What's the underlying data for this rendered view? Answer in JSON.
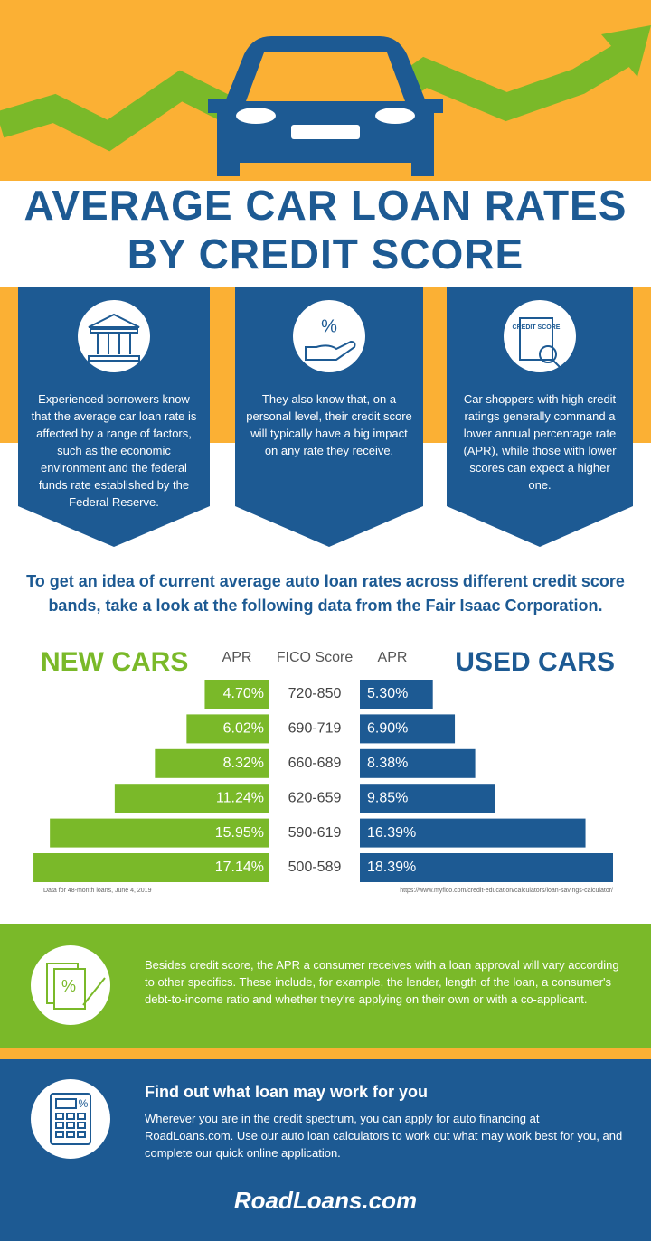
{
  "header": {
    "title_line1": "AVERAGE CAR LOAN RATES",
    "title_line2": "BY CREDIT SCORE"
  },
  "panels": [
    {
      "text": "Experienced borrowers know that the average car loan rate is affected by a range of factors, such as the economic environment and the federal funds rate established by the Federal Reserve."
    },
    {
      "text": "They also know that, on a personal level, their credit score will typically have a big impact on any rate they receive."
    },
    {
      "text": "Car shoppers with high credit ratings generally command a lower annual percentage rate (APR), while those with lower scores can expect a higher one."
    }
  ],
  "icon_labels": {
    "percent": "%",
    "credit_score": "CREDIT SCORE"
  },
  "intro": "To get an idea of current average auto loan rates across different credit score bands, take a look at the following data from the Fair Isaac Corporation.",
  "chart_data": {
    "type": "butterfly",
    "column_headers": [
      "APR",
      "FICO Score",
      "APR"
    ],
    "categories": [
      "720-850",
      "690-719",
      "660-689",
      "620-659",
      "590-619",
      "500-589"
    ],
    "series": [
      {
        "name": "NEW CARS",
        "color": "#7ab929",
        "values": [
          4.7,
          6.02,
          8.32,
          11.24,
          15.95,
          17.14
        ],
        "value_labels": [
          "4.70%",
          "6.02%",
          "8.32%",
          "11.24%",
          "15.95%",
          "17.14%"
        ]
      },
      {
        "name": "USED CARS",
        "color": "#1d5a93",
        "values": [
          5.3,
          6.9,
          8.38,
          9.85,
          16.39,
          18.39
        ],
        "value_labels": [
          "5.30%",
          "6.90%",
          "8.38%",
          "9.85%",
          "16.39%",
          "18.39%"
        ]
      }
    ],
    "note_left": "Data for 48-month loans, June 4, 2019",
    "note_right": "https://www.myfico.com/credit-education/calculators/loan-savings-calculator/"
  },
  "specifics": {
    "text": "Besides credit score, the APR a consumer receives with a loan approval will vary according to other specifics. These include, for example, the lender, length of the loan, a consumer's debt-to-income ratio and whether they're applying on their own or with a co-applicant."
  },
  "cta": {
    "heading": "Find out what loan may work for you",
    "text": "Wherever you are in the credit spectrum, you can apply for auto financing at RoadLoans.com. Use our auto loan calculators to work out what may work best for you, and complete our quick online application."
  },
  "logo": "RoadLoans.com"
}
